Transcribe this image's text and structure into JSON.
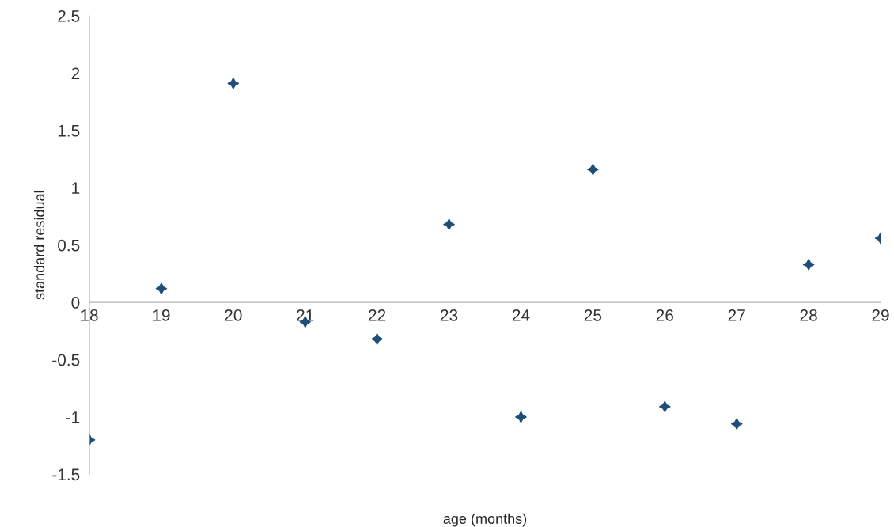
{
  "chart_data": {
    "type": "scatter",
    "xlabel": "age (months)",
    "ylabel": "standard residual",
    "x": [
      18,
      19,
      20,
      21,
      22,
      23,
      24,
      25,
      26,
      27,
      28,
      29
    ],
    "series": [
      {
        "color": "#1f4e79",
        "values": [
          -1.2,
          0.12,
          1.91,
          -0.17,
          -0.32,
          0.68,
          -1.0,
          1.16,
          -0.91,
          -1.06,
          0.33,
          0.56
        ]
      }
    ],
    "xlim": [
      18,
      29
    ],
    "xticks": [
      18,
      19,
      20,
      21,
      22,
      23,
      24,
      25,
      26,
      27,
      28,
      29
    ],
    "ylim": [
      -1.5,
      2.5
    ],
    "yticks": [
      -1.5,
      -1,
      -0.5,
      0,
      0.5,
      1,
      1.5,
      2,
      2.5
    ],
    "marker": "star",
    "grid": false,
    "legend": false
  }
}
